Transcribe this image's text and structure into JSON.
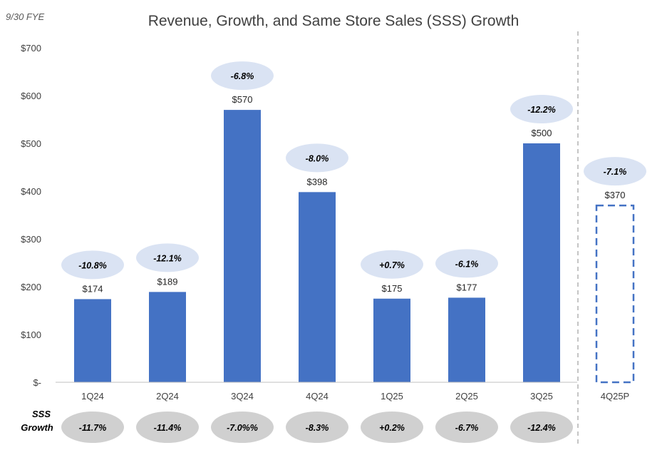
{
  "note": "9/30 FYE",
  "colors": {
    "bar": "#4472C4",
    "bubble": "#DAE3F3",
    "sss_bubble": "#D0D0D0",
    "axis": "#BFBFBF",
    "divider": "#A6A6A6"
  },
  "chart_data": {
    "type": "bar",
    "title": "Revenue, Growth, and Same Store Sales (SSS) Growth",
    "categories": [
      "1Q24",
      "2Q24",
      "3Q24",
      "4Q24",
      "1Q25",
      "2Q25",
      "3Q25",
      "4Q25P"
    ],
    "values": [
      174,
      189,
      570,
      398,
      175,
      177,
      500,
      370
    ],
    "value_labels": [
      "$174",
      "$189",
      "$570",
      "$398",
      "$175",
      "$177",
      "$500",
      "$370"
    ],
    "projected": [
      false,
      false,
      false,
      false,
      false,
      false,
      false,
      true
    ],
    "growth_labels": [
      "-10.8%",
      "-12.1%",
      "-6.8%",
      "-8.0%",
      "+0.7%",
      "-6.1%",
      "-12.2%",
      "-7.1%"
    ],
    "y_ticks": [
      0,
      100,
      200,
      300,
      400,
      500,
      600,
      700
    ],
    "y_tick_labels": [
      "$-",
      "$100",
      "$200",
      "$300",
      "$400",
      "$500",
      "$600",
      "$700"
    ],
    "ylim": [
      0,
      700
    ],
    "sss": {
      "label_line1": "SSS",
      "label_line2": "Growth",
      "values": [
        "-11.7%",
        "-11.4%",
        "-7.0%%",
        "-8.3%",
        "+0.2%",
        "-6.7%",
        "-12.4%"
      ]
    }
  }
}
